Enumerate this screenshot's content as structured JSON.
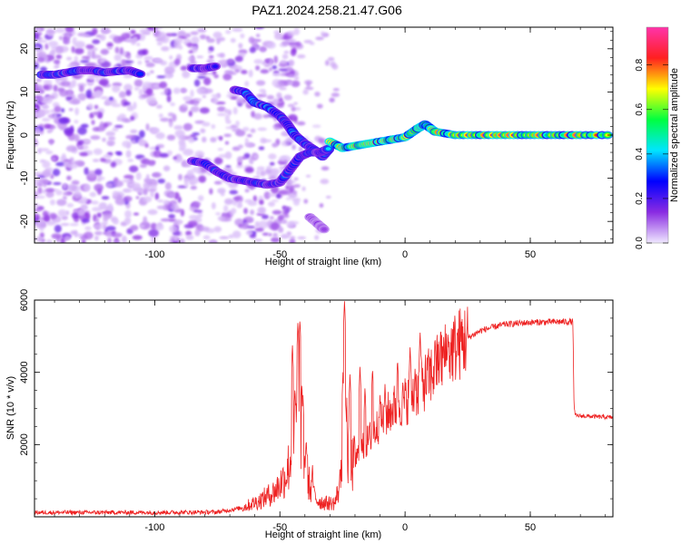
{
  "title": "PAZ1.2024.258.21.47.G06",
  "chart_data": [
    {
      "type": "heatmap",
      "xlabel": "Height of straight line (km)",
      "ylabel": "Frequency (Hz)",
      "xlim": [
        -148,
        83
      ],
      "ylim": [
        -25,
        25
      ],
      "xticks": [
        -100,
        -50,
        0,
        50
      ],
      "yticks": [
        -20,
        -10,
        0,
        10,
        20
      ],
      "colorbar": {
        "label": "Normalized spectral amplitude",
        "range": [
          0,
          0.97
        ],
        "ticks": [
          0.0,
          0.2,
          0.4,
          0.6,
          0.8
        ],
        "colors": [
          "#f0e8ff",
          "#8a2be2",
          "#0000ff",
          "#00e5ff",
          "#00ff40",
          "#ffff00",
          "#ff2020",
          "#ff33aa"
        ]
      },
      "traces": [
        {
          "points": [
            [
              -145,
              14
            ],
            [
              -140,
              14
            ],
            [
              -135,
              14.5
            ],
            [
              -130,
              15
            ],
            [
              -125,
              15
            ],
            [
              -120,
              14.5
            ],
            [
              -115,
              14.8
            ],
            [
              -110,
              15
            ],
            [
              -105,
              14
            ]
          ],
          "amplitude": 0.35
        },
        {
          "points": [
            [
              -85,
              15.5
            ],
            [
              -80,
              15.5
            ],
            [
              -75,
              16
            ]
          ],
          "amplitude": 0.3
        },
        {
          "points": [
            [
              -68,
              10.5
            ],
            [
              -64,
              10
            ],
            [
              -60,
              7.5
            ],
            [
              -55,
              6.5
            ],
            [
              -50,
              4.5
            ],
            [
              -47,
              2.5
            ],
            [
              -44,
              0
            ],
            [
              -40,
              -2
            ],
            [
              -36,
              -3.5
            ],
            [
              -33,
              -5
            ],
            [
              -30,
              -3
            ]
          ],
          "amplitude": 0.38
        },
        {
          "points": [
            [
              -85,
              -6
            ],
            [
              -80,
              -6.5
            ],
            [
              -75,
              -8.5
            ],
            [
              -70,
              -10
            ],
            [
              -65,
              -10.5
            ],
            [
              -60,
              -11
            ],
            [
              -55,
              -11.5
            ],
            [
              -50,
              -11
            ],
            [
              -46,
              -8
            ],
            [
              -42,
              -5
            ],
            [
              -38,
              -4
            ],
            [
              -34,
              -4
            ],
            [
              -30,
              -3
            ]
          ],
          "amplitude": 0.33
        },
        {
          "points": [
            [
              -30,
              -1.5
            ],
            [
              -25,
              -3
            ],
            [
              -20,
              -2.5
            ],
            [
              -15,
              -2
            ],
            [
              -10,
              -1.5
            ],
            [
              -5,
              -1
            ],
            [
              0,
              -0.5
            ],
            [
              5,
              1.5
            ],
            [
              8,
              2.5
            ],
            [
              12,
              0.8
            ],
            [
              20,
              0
            ],
            [
              30,
              0
            ],
            [
              40,
              0
            ],
            [
              50,
              0
            ],
            [
              60,
              0
            ],
            [
              70,
              0
            ],
            [
              83,
              0
            ]
          ],
          "amplitude": 0.75
        },
        {
          "points": [
            [
              -38,
              -19
            ],
            [
              -34,
              -21
            ],
            [
              -32,
              -22
            ]
          ],
          "amplitude": 0.15
        }
      ]
    },
    {
      "type": "line",
      "xlabel": "Height of straight line (km)",
      "ylabel": "SNR (10 * v/v)",
      "xlim": [
        -148,
        83
      ],
      "ylim": [
        0,
        6000
      ],
      "xticks": [
        -100,
        -50,
        0,
        50
      ],
      "yticks": [
        2000,
        4000,
        6000
      ],
      "series": [
        {
          "color": "#ee2222",
          "profile": [
            [
              -148,
              120
            ],
            [
              -100,
              120
            ],
            [
              -75,
              130
            ],
            [
              -65,
              250
            ],
            [
              -58,
              450
            ],
            [
              -52,
              700
            ],
            [
              -48,
              1100
            ],
            [
              -45,
              1700
            ],
            [
              -43,
              2600
            ],
            [
              -42,
              2900
            ],
            [
              -40,
              1500
            ],
            [
              -38,
              800
            ],
            [
              -35,
              450
            ],
            [
              -32,
              380
            ],
            [
              -28,
              380
            ],
            [
              -26,
              900
            ],
            [
              -24,
              3800
            ],
            [
              -23,
              1700
            ],
            [
              -21,
              1400
            ],
            [
              -18,
              1800
            ],
            [
              -15,
              2100
            ],
            [
              -10,
              2600
            ],
            [
              -5,
              3000
            ],
            [
              0,
              3200
            ],
            [
              5,
              3500
            ],
            [
              10,
              3900
            ],
            [
              15,
              4400
            ],
            [
              20,
              4700
            ],
            [
              25,
              4950
            ],
            [
              30,
              5150
            ],
            [
              35,
              5250
            ],
            [
              40,
              5330
            ],
            [
              50,
              5380
            ],
            [
              60,
              5400
            ],
            [
              67,
              5400
            ],
            [
              67.5,
              3000
            ],
            [
              68,
              2800
            ],
            [
              83,
              2750
            ]
          ],
          "spikes": [
            [
              -45,
              4800
            ],
            [
              -44,
              3600
            ],
            [
              -42.8,
              5400
            ],
            [
              -42,
              5500
            ],
            [
              -40.8,
              3400
            ],
            [
              -39.5,
              2200
            ],
            [
              -37,
              1500
            ],
            [
              -24.8,
              4000
            ],
            [
              -24.2,
              6000
            ],
            [
              -23.6,
              3000
            ],
            [
              -22,
              4000
            ],
            [
              -18,
              4200
            ],
            [
              -16,
              3600
            ],
            [
              -13,
              4150
            ],
            [
              -10,
              3400
            ],
            [
              -8,
              3700
            ],
            [
              -3,
              4400
            ],
            [
              2,
              4700
            ],
            [
              4,
              4100
            ],
            [
              6,
              5100
            ],
            [
              9,
              4200
            ],
            [
              12,
              4900
            ],
            [
              14,
              4600
            ],
            [
              17,
              4800
            ]
          ]
        }
      ]
    }
  ]
}
